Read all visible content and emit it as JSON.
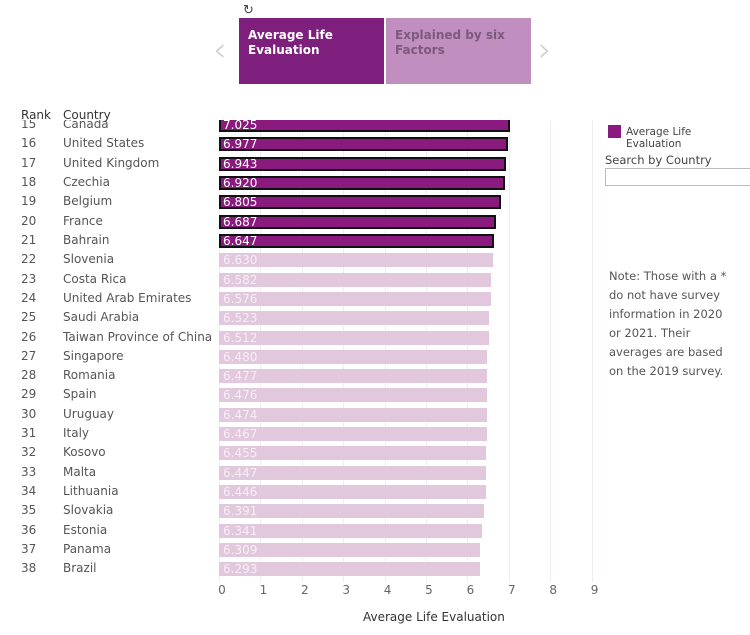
{
  "toolbar": {
    "reset_icon": "↻"
  },
  "tabs": [
    {
      "label": "Average Life Evaluation",
      "active": true
    },
    {
      "label": "Explained by six Factors",
      "active": false
    }
  ],
  "nav": {
    "prev": "‹",
    "next": "›"
  },
  "headers": {
    "rank": "Rank",
    "country": "Country"
  },
  "legend": {
    "label": "Average Life Evaluation",
    "color": "#8b1a7f"
  },
  "search": {
    "label": "Search by Country",
    "value": ""
  },
  "note": "Note: Those with a * do not have survey information in 2020 or 2021. Their averages are based on the 2019 survey.",
  "chart_data": {
    "type": "bar",
    "orientation": "horizontal",
    "xlabel": "Average Life Evaluation",
    "xlim": [
      0,
      9
    ],
    "x_ticks": [
      "0",
      "1",
      "2",
      "3",
      "4",
      "5",
      "6",
      "7",
      "8",
      "9"
    ],
    "highlight_color": "#8b1a7f",
    "dim_color": "#e2c8dc",
    "rows": [
      {
        "rank": 15,
        "country": "Canada",
        "value": "7.025",
        "highlighted": true
      },
      {
        "rank": 16,
        "country": "United States",
        "value": "6.977",
        "highlighted": true
      },
      {
        "rank": 17,
        "country": "United Kingdom",
        "value": "6.943",
        "highlighted": true
      },
      {
        "rank": 18,
        "country": "Czechia",
        "value": "6.920",
        "highlighted": true
      },
      {
        "rank": 19,
        "country": "Belgium",
        "value": "6.805",
        "highlighted": true
      },
      {
        "rank": 20,
        "country": "France",
        "value": "6.687",
        "highlighted": true
      },
      {
        "rank": 21,
        "country": "Bahrain",
        "value": "6.647",
        "highlighted": true
      },
      {
        "rank": 22,
        "country": "Slovenia",
        "value": "6.630",
        "highlighted": false
      },
      {
        "rank": 23,
        "country": "Costa Rica",
        "value": "6.582",
        "highlighted": false
      },
      {
        "rank": 24,
        "country": "United Arab Emirates",
        "value": "6.576",
        "highlighted": false
      },
      {
        "rank": 25,
        "country": "Saudi Arabia",
        "value": "6.523",
        "highlighted": false
      },
      {
        "rank": 26,
        "country": "Taiwan Province of China",
        "value": "6.512",
        "highlighted": false
      },
      {
        "rank": 27,
        "country": "Singapore",
        "value": "6.480",
        "highlighted": false
      },
      {
        "rank": 28,
        "country": "Romania",
        "value": "6.477",
        "highlighted": false
      },
      {
        "rank": 29,
        "country": "Spain",
        "value": "6.476",
        "highlighted": false
      },
      {
        "rank": 30,
        "country": "Uruguay",
        "value": "6.474",
        "highlighted": false
      },
      {
        "rank": 31,
        "country": "Italy",
        "value": "6.467",
        "highlighted": false
      },
      {
        "rank": 32,
        "country": "Kosovo",
        "value": "6.455",
        "highlighted": false
      },
      {
        "rank": 33,
        "country": "Malta",
        "value": "6.447",
        "highlighted": false
      },
      {
        "rank": 34,
        "country": "Lithuania",
        "value": "6.446",
        "highlighted": false
      },
      {
        "rank": 35,
        "country": "Slovakia",
        "value": "6.391",
        "highlighted": false
      },
      {
        "rank": 36,
        "country": "Estonia",
        "value": "6.341",
        "highlighted": false
      },
      {
        "rank": 37,
        "country": "Panama",
        "value": "6.309",
        "highlighted": false
      },
      {
        "rank": 38,
        "country": "Brazil",
        "value": "6.293",
        "highlighted": false
      }
    ]
  }
}
